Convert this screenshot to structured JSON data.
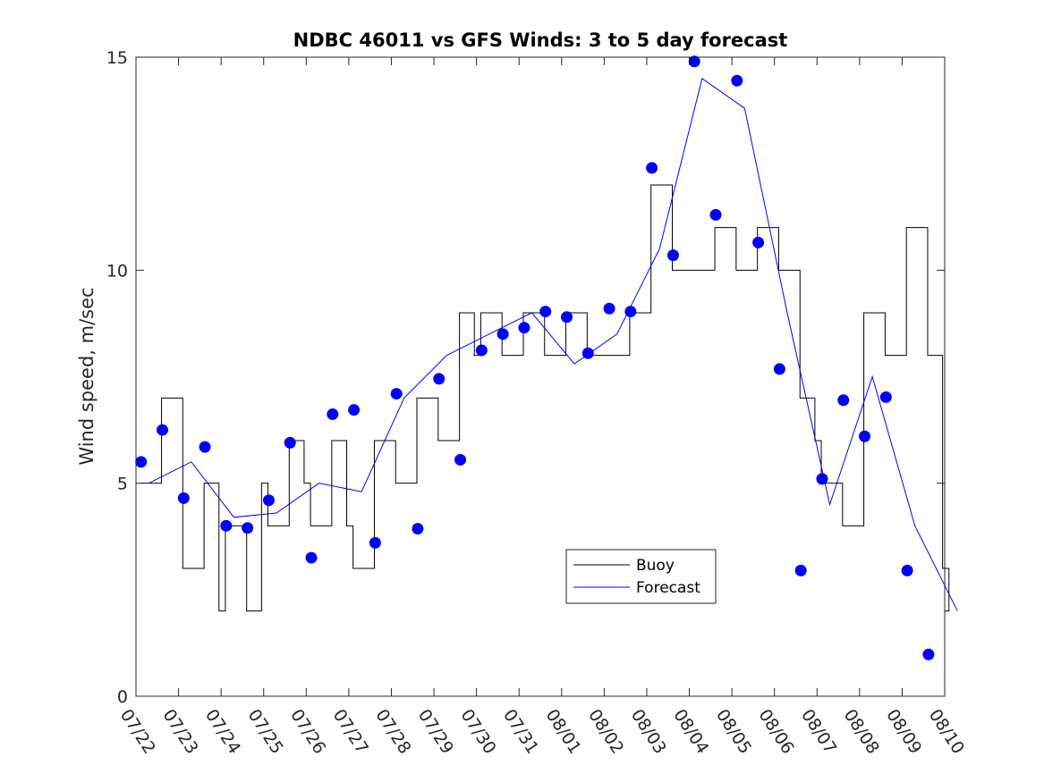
{
  "chart_data": {
    "type": "line",
    "title": "NDBC 46011 vs GFS Winds: 3 to 5 day forecast",
    "xlabel": "",
    "ylabel": "Wind speed, m/sec",
    "xlim": [
      "07/22",
      "08/10"
    ],
    "ylim": [
      0,
      15
    ],
    "x_ticks": [
      "07/22",
      "07/23",
      "07/24",
      "07/25",
      "07/26",
      "07/27",
      "07/28",
      "07/29",
      "07/30",
      "07/31",
      "08/01",
      "08/02",
      "08/03",
      "08/04",
      "08/05",
      "08/06",
      "08/07",
      "08/08",
      "08/09",
      "08/10"
    ],
    "y_ticks": [
      0,
      5,
      10,
      15
    ],
    "legend": {
      "position": "lower-center",
      "entries": [
        "Buoy",
        "Forecast"
      ]
    },
    "colors": {
      "buoy": "#000000",
      "forecast": "#0000ff"
    },
    "series": [
      {
        "name": "Buoy",
        "style": "step",
        "x": [
          "07/22",
          "07/22",
          "07/23",
          "07/23",
          "07/23",
          "07/24",
          "07/24",
          "07/24",
          "07/25",
          "07/25",
          "07/25",
          "07/26",
          "07/26",
          "07/26",
          "07/27",
          "07/27",
          "07/28",
          "07/28",
          "07/28",
          "07/29",
          "07/29",
          "07/29",
          "07/30",
          "07/30",
          "07/31",
          "07/31",
          "08/01",
          "08/01",
          "08/02",
          "08/02",
          "08/03",
          "08/03",
          "08/04",
          "08/04",
          "08/05",
          "08/05",
          "08/06",
          "08/06",
          "08/06",
          "08/07",
          "08/07",
          "08/08",
          "08/08",
          "08/09",
          "08/09",
          "08/09",
          "08/10"
        ],
        "values": [
          5,
          7,
          3,
          5,
          2,
          4,
          2,
          5,
          4,
          6,
          5,
          4,
          6,
          4,
          3,
          6,
          5,
          7,
          7,
          6,
          9,
          8,
          9,
          8,
          9,
          8,
          9,
          8,
          8,
          9,
          12,
          10,
          10,
          11,
          10,
          11,
          10,
          7,
          6,
          5,
          4,
          9,
          8,
          11,
          8,
          3,
          2
        ]
      },
      {
        "name": "Forecast",
        "style": "line",
        "x": [
          "07/22",
          "07/23",
          "07/24",
          "07/25",
          "07/26",
          "07/27",
          "07/28",
          "07/29",
          "07/30",
          "07/31",
          "08/01",
          "08/02",
          "08/03",
          "08/04",
          "08/05",
          "08/06",
          "08/07",
          "08/08",
          "08/09",
          "08/10"
        ],
        "values": [
          5.0,
          5.5,
          4.2,
          4.3,
          5.0,
          4.8,
          7.0,
          8.0,
          8.5,
          9.0,
          7.8,
          8.5,
          10.5,
          14.5,
          13.8,
          9.0,
          4.5,
          7.5,
          4.0,
          2.0
        ]
      }
    ],
    "forecast_markers": {
      "x": [
        "07/22",
        "07/22",
        "07/23",
        "07/23",
        "07/24",
        "07/24",
        "07/25",
        "07/25",
        "07/26",
        "07/26",
        "07/27",
        "07/27",
        "07/28",
        "07/28",
        "07/29",
        "07/29",
        "07/30",
        "07/30",
        "07/31",
        "07/31",
        "08/01",
        "08/01",
        "08/02",
        "08/02",
        "08/03",
        "08/03",
        "08/04",
        "08/04",
        "08/05",
        "08/05",
        "08/06",
        "08/06",
        "08/07",
        "08/07",
        "08/08",
        "08/08",
        "08/09",
        "08/09"
      ],
      "x_offset_days": [
        0.12,
        0.62,
        0.12,
        0.62,
        0.12,
        0.62,
        0.12,
        0.62,
        0.12,
        0.62,
        0.12,
        0.62,
        0.12,
        0.62,
        0.12,
        0.62,
        0.12,
        0.62,
        0.12,
        0.62,
        0.12,
        0.62,
        0.12,
        0.62,
        0.12,
        0.62,
        0.12,
        0.62,
        0.12,
        0.62,
        0.12,
        0.62,
        0.12,
        0.62,
        0.12,
        0.62,
        0.12,
        0.62
      ],
      "values": [
        5.5,
        6.25,
        4.65,
        5.85,
        4.0,
        3.95,
        4.6,
        5.95,
        3.25,
        6.62,
        6.72,
        3.6,
        7.1,
        3.93,
        7.45,
        5.55,
        8.12,
        8.5,
        8.65,
        9.03,
        8.9,
        8.05,
        9.1,
        9.03,
        12.4,
        10.35,
        14.9,
        11.3,
        14.45,
        10.65,
        7.68,
        2.95,
        5.1,
        6.95,
        6.1,
        7.02,
        2.95,
        0.98
      ]
    }
  }
}
